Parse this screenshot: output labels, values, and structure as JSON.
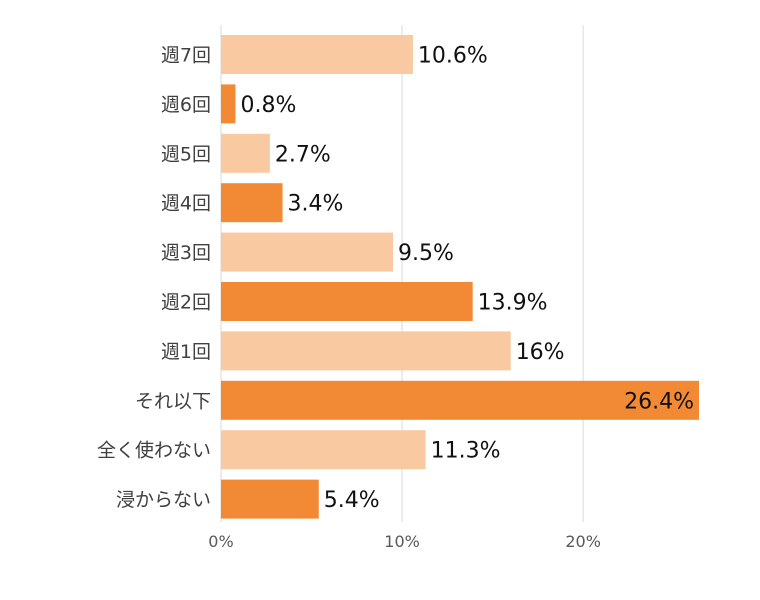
{
  "chart_data": {
    "type": "bar",
    "orientation": "horizontal",
    "title": "",
    "xlabel": "",
    "ylabel": "",
    "categories": [
      "週7回",
      "週6回",
      "週5回",
      "週4回",
      "週3回",
      "週2回",
      "週1回",
      "それ以下",
      "全く使わない",
      "浸からない"
    ],
    "values": [
      10.6,
      0.8,
      2.7,
      3.4,
      9.5,
      13.9,
      16,
      26.4,
      11.3,
      5.4
    ],
    "value_labels": [
      "10.6%",
      "0.8%",
      "2.7%",
      "3.4%",
      "9.5%",
      "13.9%",
      "16%",
      "26.4%",
      "11.3%",
      "5.4%"
    ],
    "xlim": [
      0,
      26.4
    ],
    "ticks": [
      0,
      10,
      20
    ],
    "tick_labels": [
      "0%",
      "10%",
      "20%"
    ],
    "grid": true,
    "legend": "none",
    "bar_colors": [
      "#f9c9a2",
      "#f28a35"
    ]
  }
}
